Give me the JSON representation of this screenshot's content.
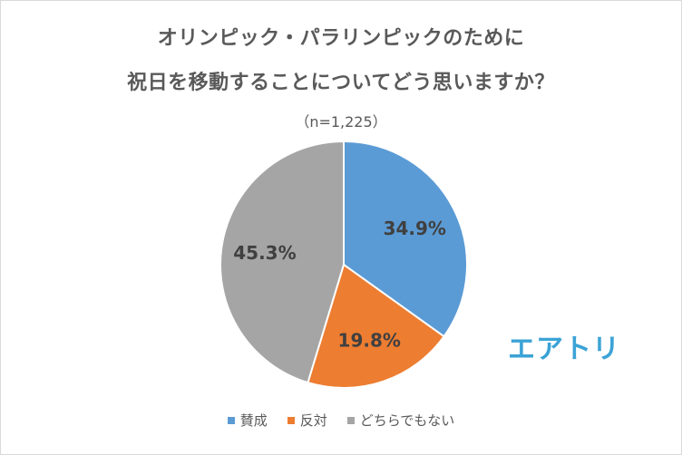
{
  "chart_data": {
    "type": "pie",
    "title_line1": "オリンピック・パラリンピックのために",
    "title_line2": "祝日を移動することについてどう思いますか？",
    "subtitle": "（n=1,225）",
    "legend_placement": "bottom",
    "slices": [
      {
        "name": "賛成",
        "value": 34.9,
        "label": "34.9%",
        "color": "#5b9bd5"
      },
      {
        "name": "反対",
        "value": 19.8,
        "label": "19.8%",
        "color": "#ed7d31"
      },
      {
        "name": "どちらでもない",
        "value": 45.3,
        "label": "45.3%",
        "color": "#a5a5a5"
      }
    ]
  },
  "logo": {
    "text": "エアトリ",
    "color": "#3ba3d6"
  }
}
